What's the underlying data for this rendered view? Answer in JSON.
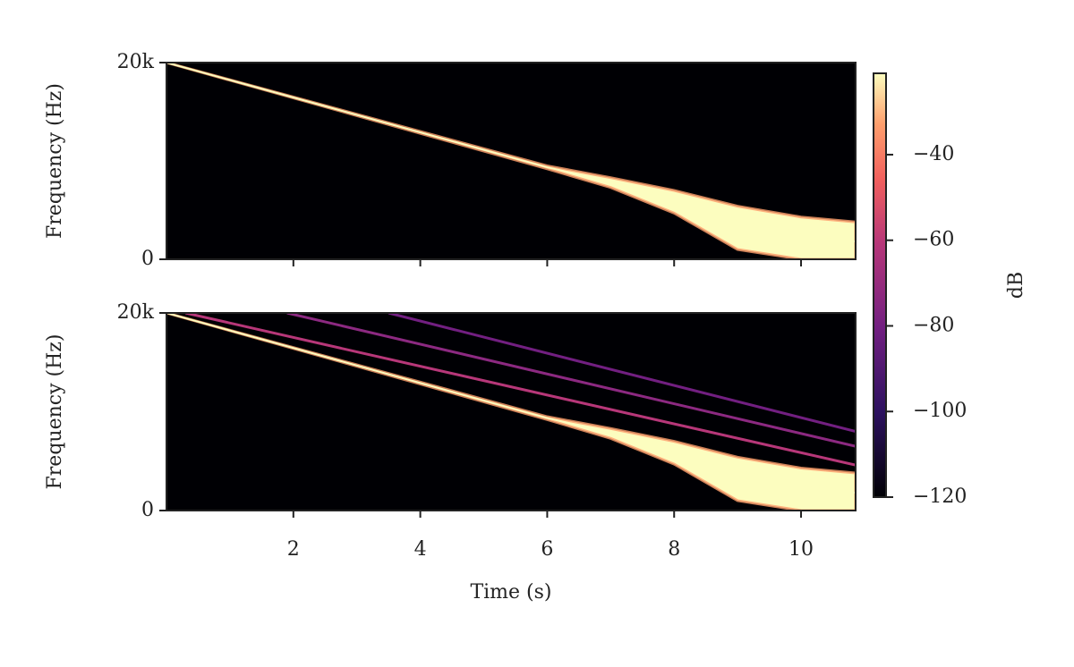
{
  "chart_data": [
    {
      "type": "spectrogram",
      "ylabel": "Frequency (Hz)",
      "xlim": [
        0,
        10.86
      ],
      "ylim": [
        0,
        20000
      ],
      "xticks": [
        2,
        4,
        6,
        8,
        10
      ],
      "xtick_labels": false,
      "yticks": [
        0,
        {
          "value": 20000,
          "label": "20k"
        }
      ],
      "series": [
        {
          "color": "#fcfdbf",
          "x": [
            0,
            6,
            7,
            8,
            9,
            10,
            10.86
          ],
          "values": [
            20000,
            9360,
            7900,
            6000,
            4000,
            2700,
            1800
          ],
          "low": [
            20000,
            9200,
            7300,
            4700,
            1000,
            0,
            0
          ],
          "high": [
            20000,
            9500,
            8300,
            7000,
            5400,
            4300,
            3800
          ]
        }
      ]
    },
    {
      "type": "spectrogram",
      "ylabel": "Frequency (Hz)",
      "xlabel": "Time (s)",
      "xlim": [
        0,
        10.86
      ],
      "ylim": [
        0,
        20000
      ],
      "xticks": [
        2,
        4,
        6,
        8,
        10
      ],
      "yticks": [
        0,
        {
          "value": 20000,
          "label": "20k"
        }
      ],
      "series": [
        {
          "color": "#b73779",
          "x": [
            0.3,
            10.86
          ],
          "values": [
            20000,
            4600
          ]
        },
        {
          "color": "#8c2981",
          "x": [
            1.9,
            10.86
          ],
          "values": [
            20000,
            6500
          ]
        },
        {
          "color": "#721f81",
          "x": [
            3.5,
            10.86
          ],
          "values": [
            20000,
            8000
          ]
        },
        {
          "color": "#fcfdbf",
          "x": [
            0,
            6,
            7,
            8,
            9,
            10,
            10.86
          ],
          "values": [
            20000,
            9360,
            7900,
            6000,
            4000,
            2700,
            1800
          ],
          "low": [
            20000,
            9200,
            7300,
            4700,
            1000,
            0,
            0
          ],
          "high": [
            20000,
            9500,
            8300,
            7000,
            5400,
            4300,
            3800
          ]
        }
      ]
    }
  ],
  "colorbar": {
    "label": "dB",
    "colormap": "magma",
    "lim": [
      -120,
      -21
    ],
    "ticks": [
      {
        "value": -120,
        "label": "−120"
      },
      {
        "value": -100,
        "label": "−100"
      },
      {
        "value": -80,
        "label": "−80"
      },
      {
        "value": -60,
        "label": "−60"
      },
      {
        "value": -40,
        "label": "−40"
      }
    ]
  }
}
